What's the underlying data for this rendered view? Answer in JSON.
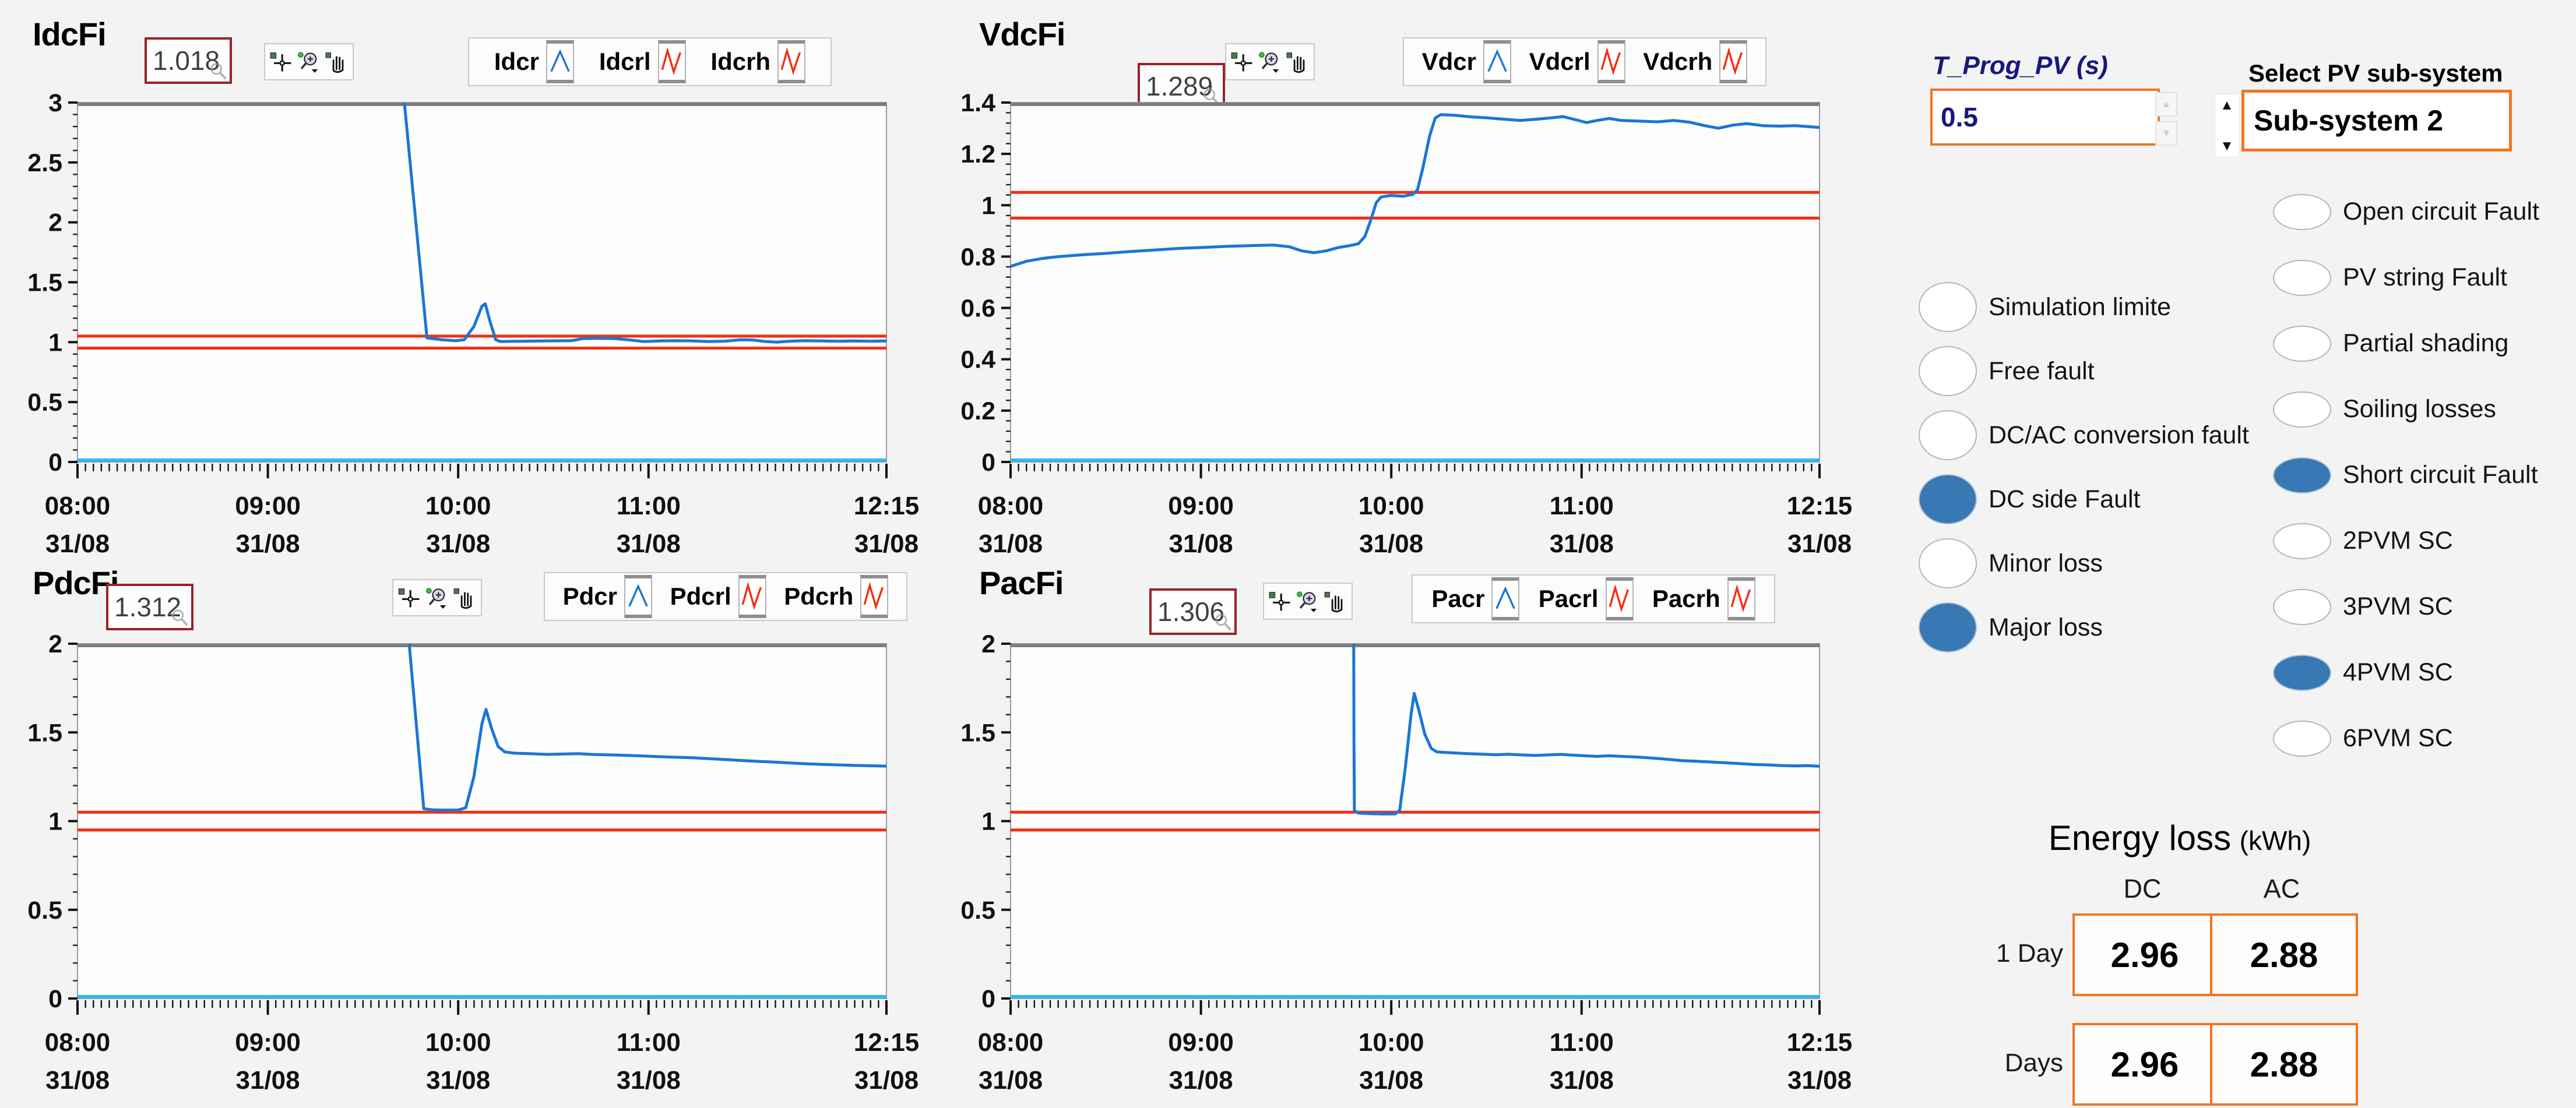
{
  "colors": {
    "curve_blue": "#1b76d6",
    "threshold_red": "#f42d12",
    "baseline_cyan": "#35b6ea",
    "radio_selected": "#3878b4",
    "accent_orange": "#ef7622",
    "indicator_border": "#9b2226",
    "label_navy": "#18187e"
  },
  "chart_data": [
    {
      "type": "line",
      "id": "IdcFi",
      "title": "IdcFi",
      "indicator_value": "1.018",
      "ylim": [
        0,
        3
      ],
      "yticks": [
        0,
        0.5,
        1,
        1.5,
        2,
        2.5,
        3
      ],
      "x_span_min": 255,
      "x_ticks": [
        {
          "pos": 0,
          "time": "08:00",
          "date": "31/08"
        },
        {
          "pos": 0.23529,
          "time": "09:00",
          "date": "31/08"
        },
        {
          "pos": 0.47059,
          "time": "10:00",
          "date": "31/08"
        },
        {
          "pos": 0.70588,
          "time": "11:00",
          "date": "31/08"
        },
        {
          "pos": 1,
          "time": "12:15",
          "date": "31/08"
        }
      ],
      "series": [
        {
          "name": "Idcr",
          "color": "#1b76d6",
          "points": [
            [
              0.4,
              3.3
            ],
            [
              0.404,
              3.0
            ],
            [
              0.432,
              1.035
            ],
            [
              0.45,
              1.02
            ],
            [
              0.468,
              1.012
            ],
            [
              0.478,
              1.02
            ],
            [
              0.49,
              1.13
            ],
            [
              0.5,
              1.3
            ],
            [
              0.504,
              1.32
            ],
            [
              0.51,
              1.17
            ],
            [
              0.517,
              1.02
            ],
            [
              0.523,
              1.005
            ],
            [
              0.55,
              1.008
            ],
            [
              0.58,
              1.01
            ],
            [
              0.61,
              1.012
            ],
            [
              0.625,
              1.03
            ],
            [
              0.645,
              1.032
            ],
            [
              0.665,
              1.03
            ],
            [
              0.68,
              1.02
            ],
            [
              0.7,
              1.005
            ],
            [
              0.72,
              1.01
            ],
            [
              0.74,
              1.012
            ],
            [
              0.76,
              1.01
            ],
            [
              0.78,
              1.005
            ],
            [
              0.8,
              1.008
            ],
            [
              0.82,
              1.02
            ],
            [
              0.835,
              1.018
            ],
            [
              0.85,
              1.005
            ],
            [
              0.865,
              1.0
            ],
            [
              0.88,
              1.008
            ],
            [
              0.9,
              1.012
            ],
            [
              0.92,
              1.01
            ],
            [
              0.94,
              1.008
            ],
            [
              0.96,
              1.01
            ],
            [
              0.98,
              1.008
            ],
            [
              1.0,
              1.01
            ]
          ]
        },
        {
          "name": "Idcrl",
          "color": "#f42d12",
          "value": 0.95
        },
        {
          "name": "Idcrh",
          "color": "#f42d12",
          "value": 1.05
        }
      ],
      "baseline_value": 0,
      "baseline_color": "#35b6ea"
    },
    {
      "type": "line",
      "id": "VdcFi",
      "title": "VdcFi",
      "indicator_value": "1.289",
      "ylim": [
        0,
        1.4
      ],
      "yticks": [
        0,
        0.2,
        0.4,
        0.6,
        0.8,
        1,
        1.2,
        1.4
      ],
      "x_span_min": 255,
      "x_ticks": [
        {
          "pos": 0,
          "time": "08:00",
          "date": "31/08"
        },
        {
          "pos": 0.23529,
          "time": "09:00",
          "date": "31/08"
        },
        {
          "pos": 0.47059,
          "time": "10:00",
          "date": "31/08"
        },
        {
          "pos": 0.70588,
          "time": "11:00",
          "date": "31/08"
        },
        {
          "pos": 1,
          "time": "12:15",
          "date": "31/08"
        }
      ],
      "series": [
        {
          "name": "Vdcr",
          "color": "#1b76d6",
          "points": [
            [
              0,
              0.762
            ],
            [
              0.02,
              0.782
            ],
            [
              0.04,
              0.793
            ],
            [
              0.06,
              0.8
            ],
            [
              0.09,
              0.807
            ],
            [
              0.12,
              0.813
            ],
            [
              0.15,
              0.82
            ],
            [
              0.18,
              0.826
            ],
            [
              0.21,
              0.832
            ],
            [
              0.24,
              0.836
            ],
            [
              0.27,
              0.84
            ],
            [
              0.3,
              0.843
            ],
            [
              0.325,
              0.845
            ],
            [
              0.345,
              0.838
            ],
            [
              0.36,
              0.822
            ],
            [
              0.375,
              0.815
            ],
            [
              0.39,
              0.822
            ],
            [
              0.405,
              0.835
            ],
            [
              0.42,
              0.843
            ],
            [
              0.43,
              0.85
            ],
            [
              0.438,
              0.878
            ],
            [
              0.445,
              0.94
            ],
            [
              0.452,
              1.01
            ],
            [
              0.458,
              1.032
            ],
            [
              0.47,
              1.038
            ],
            [
              0.485,
              1.035
            ],
            [
              0.497,
              1.042
            ],
            [
              0.503,
              1.06
            ],
            [
              0.51,
              1.15
            ],
            [
              0.518,
              1.27
            ],
            [
              0.525,
              1.34
            ],
            [
              0.532,
              1.353
            ],
            [
              0.55,
              1.35
            ],
            [
              0.57,
              1.344
            ],
            [
              0.59,
              1.34
            ],
            [
              0.61,
              1.335
            ],
            [
              0.63,
              1.33
            ],
            [
              0.65,
              1.335
            ],
            [
              0.668,
              1.34
            ],
            [
              0.683,
              1.345
            ],
            [
              0.7,
              1.332
            ],
            [
              0.712,
              1.322
            ],
            [
              0.725,
              1.33
            ],
            [
              0.74,
              1.338
            ],
            [
              0.755,
              1.33
            ],
            [
              0.775,
              1.328
            ],
            [
              0.8,
              1.325
            ],
            [
              0.82,
              1.33
            ],
            [
              0.84,
              1.323
            ],
            [
              0.858,
              1.31
            ],
            [
              0.875,
              1.3
            ],
            [
              0.893,
              1.312
            ],
            [
              0.91,
              1.318
            ],
            [
              0.93,
              1.31
            ],
            [
              0.95,
              1.308
            ],
            [
              0.97,
              1.31
            ],
            [
              1.0,
              1.303
            ]
          ]
        },
        {
          "name": "Vdcrl",
          "color": "#f42d12",
          "value": 0.95
        },
        {
          "name": "Vdcrh",
          "color": "#f42d12",
          "value": 1.05
        }
      ],
      "baseline_value": 0,
      "baseline_color": "#35b6ea"
    },
    {
      "type": "line",
      "id": "PdcFi",
      "title": "PdcFi",
      "indicator_value": "1.312",
      "ylim": [
        0,
        2
      ],
      "yticks": [
        0,
        0.5,
        1,
        1.5,
        2
      ],
      "x_span_min": 255,
      "x_ticks": [
        {
          "pos": 0,
          "time": "08:00",
          "date": "31/08"
        },
        {
          "pos": 0.23529,
          "time": "09:00",
          "date": "31/08"
        },
        {
          "pos": 0.47059,
          "time": "10:00",
          "date": "31/08"
        },
        {
          "pos": 0.70588,
          "time": "11:00",
          "date": "31/08"
        },
        {
          "pos": 1,
          "time": "12:15",
          "date": "31/08"
        }
      ],
      "series": [
        {
          "name": "Pdcr",
          "color": "#1b76d6",
          "points": [
            [
              0.406,
              2.3
            ],
            [
              0.41,
              2.0
            ],
            [
              0.428,
              1.07
            ],
            [
              0.44,
              1.063
            ],
            [
              0.455,
              1.062
            ],
            [
              0.47,
              1.062
            ],
            [
              0.48,
              1.075
            ],
            [
              0.49,
              1.25
            ],
            [
              0.5,
              1.55
            ],
            [
              0.505,
              1.63
            ],
            [
              0.512,
              1.52
            ],
            [
              0.52,
              1.42
            ],
            [
              0.528,
              1.39
            ],
            [
              0.54,
              1.383
            ],
            [
              0.56,
              1.38
            ],
            [
              0.58,
              1.376
            ],
            [
              0.6,
              1.378
            ],
            [
              0.62,
              1.38
            ],
            [
              0.64,
              1.375
            ],
            [
              0.66,
              1.373
            ],
            [
              0.68,
              1.37
            ],
            [
              0.7,
              1.367
            ],
            [
              0.72,
              1.363
            ],
            [
              0.74,
              1.36
            ],
            [
              0.76,
              1.357
            ],
            [
              0.78,
              1.352
            ],
            [
              0.8,
              1.347
            ],
            [
              0.82,
              1.342
            ],
            [
              0.84,
              1.337
            ],
            [
              0.86,
              1.333
            ],
            [
              0.88,
              1.328
            ],
            [
              0.9,
              1.323
            ],
            [
              0.92,
              1.32
            ],
            [
              0.94,
              1.317
            ],
            [
              0.96,
              1.314
            ],
            [
              0.98,
              1.312
            ],
            [
              1.0,
              1.31
            ]
          ]
        },
        {
          "name": "Pdcrl",
          "color": "#f42d12",
          "value": 0.95
        },
        {
          "name": "Pdcrh",
          "color": "#f42d12",
          "value": 1.05
        }
      ],
      "baseline_value": 0,
      "baseline_color": "#35b6ea"
    },
    {
      "type": "line",
      "id": "PacFi",
      "title": "PacFi",
      "indicator_value": "1.306",
      "ylim": [
        0,
        2
      ],
      "yticks": [
        0,
        0.5,
        1,
        1.5,
        2
      ],
      "x_span_min": 255,
      "x_ticks": [
        {
          "pos": 0,
          "time": "08:00",
          "date": "31/08"
        },
        {
          "pos": 0.23529,
          "time": "09:00",
          "date": "31/08"
        },
        {
          "pos": 0.47059,
          "time": "10:00",
          "date": "31/08"
        },
        {
          "pos": 0.70588,
          "time": "11:00",
          "date": "31/08"
        },
        {
          "pos": 1,
          "time": "12:15",
          "date": "31/08"
        }
      ],
      "series": [
        {
          "name": "Pacr",
          "color": "#1b76d6",
          "points": [
            [
              0.424,
              2.3
            ],
            [
              0.4245,
              1.45
            ],
            [
              0.425,
              1.06
            ],
            [
              0.43,
              1.045
            ],
            [
              0.445,
              1.042
            ],
            [
              0.46,
              1.04
            ],
            [
              0.475,
              1.04
            ],
            [
              0.481,
              1.06
            ],
            [
              0.488,
              1.3
            ],
            [
              0.495,
              1.6
            ],
            [
              0.499,
              1.72
            ],
            [
              0.505,
              1.62
            ],
            [
              0.512,
              1.49
            ],
            [
              0.52,
              1.41
            ],
            [
              0.527,
              1.39
            ],
            [
              0.545,
              1.385
            ],
            [
              0.565,
              1.38
            ],
            [
              0.585,
              1.377
            ],
            [
              0.6,
              1.374
            ],
            [
              0.615,
              1.377
            ],
            [
              0.632,
              1.373
            ],
            [
              0.648,
              1.37
            ],
            [
              0.664,
              1.373
            ],
            [
              0.68,
              1.376
            ],
            [
              0.695,
              1.372
            ],
            [
              0.71,
              1.368
            ],
            [
              0.725,
              1.365
            ],
            [
              0.74,
              1.368
            ],
            [
              0.755,
              1.365
            ],
            [
              0.77,
              1.362
            ],
            [
              0.785,
              1.358
            ],
            [
              0.8,
              1.353
            ],
            [
              0.815,
              1.347
            ],
            [
              0.83,
              1.341
            ],
            [
              0.85,
              1.337
            ],
            [
              0.87,
              1.332
            ],
            [
              0.89,
              1.327
            ],
            [
              0.905,
              1.323
            ],
            [
              0.92,
              1.319
            ],
            [
              0.94,
              1.316
            ],
            [
              0.955,
              1.313
            ],
            [
              0.97,
              1.311
            ],
            [
              0.985,
              1.313
            ],
            [
              1.0,
              1.309
            ]
          ]
        },
        {
          "name": "Pacrl",
          "color": "#f42d12",
          "value": 0.95
        },
        {
          "name": "Pacrh",
          "color": "#f42d12",
          "value": 1.05
        }
      ],
      "baseline_value": 0,
      "baseline_color": "#35b6ea"
    }
  ],
  "panel": {
    "tprog_label": "T_Prog_PV (s)",
    "tprog_value": "0.5",
    "select_label": "Select PV sub-system",
    "subsystem_value": "Sub-system 2",
    "spinner_up": "▲",
    "spinner_down": "▼",
    "fault_options_left": [
      {
        "label": "Simulation limite",
        "checked": false
      },
      {
        "label": "Free fault",
        "checked": false
      },
      {
        "label": "DC/AC conversion fault",
        "checked": false
      },
      {
        "label": "DC side Fault",
        "checked": true
      },
      {
        "label": "Minor loss",
        "checked": false
      },
      {
        "label": "Major loss",
        "checked": true
      }
    ],
    "fault_options_right": [
      {
        "label": "Open circuit Fault",
        "checked": false
      },
      {
        "label": "PV string Fault",
        "checked": false
      },
      {
        "label": "Partial shading",
        "checked": false
      },
      {
        "label": "Soiling losses",
        "checked": false
      },
      {
        "label": "Short circuit Fault",
        "checked": true
      },
      {
        "label": "2PVM SC",
        "checked": false
      },
      {
        "label": "3PVM SC",
        "checked": false
      },
      {
        "label": "4PVM SC",
        "checked": true
      },
      {
        "label": "6PVM SC",
        "checked": false
      }
    ],
    "energy": {
      "title": "Energy loss",
      "unit": "(kWh)",
      "cols": [
        "DC",
        "AC"
      ],
      "rows": [
        {
          "label": "1 Day",
          "dc": "2.96",
          "ac": "2.88"
        },
        {
          "label": "Days",
          "dc": "2.96",
          "ac": "2.88"
        }
      ]
    }
  }
}
